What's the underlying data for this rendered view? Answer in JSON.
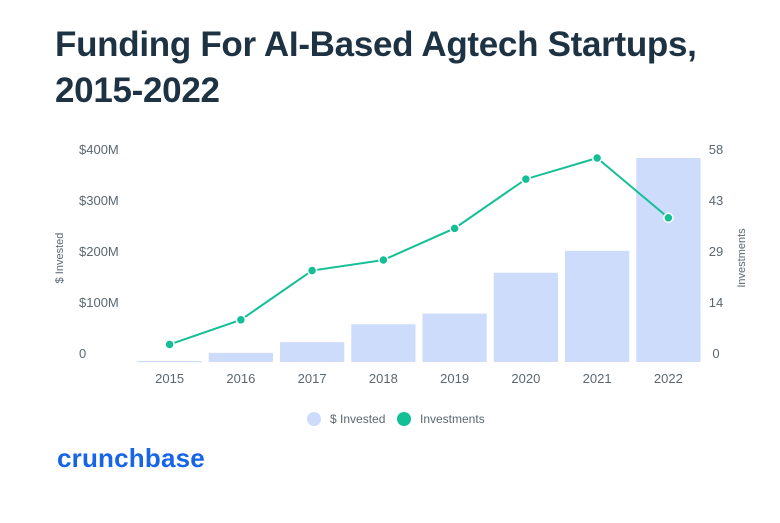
{
  "title_line1": "Funding For AI-Based Agtech Startups,",
  "title_line2": "2015-2022",
  "brand": "crunchbase",
  "colors": {
    "bar": "#cddcfb",
    "line": "#14bf96",
    "title": "#1d3344",
    "brand": "#1764e8"
  },
  "chart_data": {
    "type": "bar+line",
    "categories": [
      "2015",
      "2016",
      "2017",
      "2018",
      "2019",
      "2020",
      "2021",
      "2022"
    ],
    "series": [
      {
        "name": "$ Invested",
        "type": "bar",
        "axis": "left",
        "values": [
          2,
          18,
          39,
          74,
          95,
          175,
          218,
          400
        ]
      },
      {
        "name": "Investments",
        "type": "line",
        "axis": "right",
        "values": [
          5,
          12,
          26,
          29,
          38,
          52,
          58,
          41
        ]
      }
    ],
    "left_axis": {
      "label": "$ Invested",
      "ticks": [
        "0",
        "$100M",
        "$200M",
        "$300M",
        "$400M"
      ],
      "range": [
        0,
        400
      ]
    },
    "right_axis": {
      "label": "Investments",
      "ticks": [
        "0",
        "14",
        "29",
        "43",
        "58"
      ],
      "range": [
        0,
        58
      ]
    },
    "legend_position": "bottom",
    "grid": false
  }
}
